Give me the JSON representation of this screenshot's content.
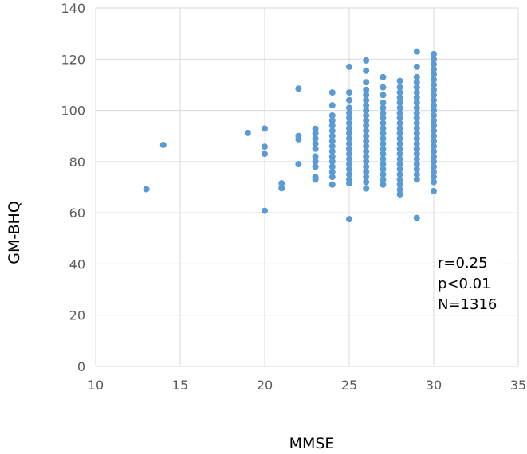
{
  "chart_data": {
    "type": "scatter",
    "title": "",
    "xlabel": "MMSE",
    "ylabel": "GM-BHQ",
    "xlim": [
      10,
      35
    ],
    "ylim": [
      0,
      140
    ],
    "x_ticks": [
      "10",
      "15",
      "20",
      "25",
      "30",
      "35"
    ],
    "y_ticks": [
      "0",
      "20",
      "40",
      "60",
      "80",
      "100",
      "120",
      "140"
    ],
    "grid": true,
    "marker_color": "#5B9BD5",
    "annotations": [
      "r=0.25",
      "p<0.01",
      "N=1316"
    ],
    "points": [
      [
        13,
        69.2
      ],
      [
        14,
        86.5
      ],
      [
        19,
        91.2
      ],
      [
        20,
        60.8
      ],
      [
        20,
        83
      ],
      [
        20,
        85.8
      ],
      [
        20,
        92.9
      ],
      [
        21,
        69.6
      ],
      [
        21,
        71.5
      ],
      [
        22,
        79
      ],
      [
        22,
        88.7
      ],
      [
        22,
        90
      ],
      [
        22,
        108.5
      ],
      [
        23,
        73
      ],
      [
        23,
        74
      ],
      [
        23,
        78
      ],
      [
        23,
        80
      ],
      [
        23,
        82
      ],
      [
        23,
        85
      ],
      [
        23,
        87
      ],
      [
        23,
        89
      ],
      [
        23,
        91
      ],
      [
        23,
        92.8
      ],
      [
        24,
        71
      ],
      [
        24,
        74
      ],
      [
        24,
        76
      ],
      [
        24,
        78
      ],
      [
        24,
        80
      ],
      [
        24,
        82
      ],
      [
        24,
        84
      ],
      [
        24,
        86
      ],
      [
        24,
        88
      ],
      [
        24,
        90
      ],
      [
        24,
        92
      ],
      [
        24,
        94
      ],
      [
        24,
        96
      ],
      [
        24,
        98
      ],
      [
        24,
        102
      ],
      [
        24,
        107
      ],
      [
        25,
        57.5
      ],
      [
        25,
        71.5
      ],
      [
        25,
        73
      ],
      [
        25,
        75
      ],
      [
        25,
        77
      ],
      [
        25,
        79
      ],
      [
        25,
        81
      ],
      [
        25,
        83
      ],
      [
        25,
        85
      ],
      [
        25,
        87
      ],
      [
        25,
        89
      ],
      [
        25,
        91
      ],
      [
        25,
        93
      ],
      [
        25,
        95
      ],
      [
        25,
        97
      ],
      [
        25,
        99
      ],
      [
        25,
        101
      ],
      [
        25,
        104
      ],
      [
        25,
        107
      ],
      [
        25,
        117
      ],
      [
        26,
        69.5
      ],
      [
        26,
        72
      ],
      [
        26,
        74
      ],
      [
        26,
        76
      ],
      [
        26,
        78
      ],
      [
        26,
        80
      ],
      [
        26,
        82
      ],
      [
        26,
        84
      ],
      [
        26,
        86
      ],
      [
        26,
        88
      ],
      [
        26,
        90
      ],
      [
        26,
        92
      ],
      [
        26,
        94
      ],
      [
        26,
        96
      ],
      [
        26,
        98
      ],
      [
        26,
        100
      ],
      [
        26,
        102
      ],
      [
        26,
        104
      ],
      [
        26,
        106
      ],
      [
        26,
        108
      ],
      [
        26,
        111
      ],
      [
        26,
        115.5
      ],
      [
        26,
        119.5
      ],
      [
        27,
        71
      ],
      [
        27,
        73
      ],
      [
        27,
        75
      ],
      [
        27,
        77
      ],
      [
        27,
        79
      ],
      [
        27,
        81
      ],
      [
        27,
        83
      ],
      [
        27,
        85
      ],
      [
        27,
        87
      ],
      [
        27,
        89
      ],
      [
        27,
        91
      ],
      [
        27,
        93
      ],
      [
        27,
        95
      ],
      [
        27,
        97
      ],
      [
        27,
        99
      ],
      [
        27,
        101
      ],
      [
        27,
        103
      ],
      [
        27,
        106
      ],
      [
        27,
        109
      ],
      [
        27,
        113
      ],
      [
        28,
        67.2
      ],
      [
        28,
        69
      ],
      [
        28,
        71
      ],
      [
        28,
        73
      ],
      [
        28,
        75
      ],
      [
        28,
        77
      ],
      [
        28,
        79
      ],
      [
        28,
        81
      ],
      [
        28,
        83
      ],
      [
        28,
        85
      ],
      [
        28,
        87
      ],
      [
        28,
        89
      ],
      [
        28,
        91
      ],
      [
        28,
        93
      ],
      [
        28,
        95
      ],
      [
        28,
        97
      ],
      [
        28,
        99
      ],
      [
        28,
        101
      ],
      [
        28,
        103
      ],
      [
        28,
        105
      ],
      [
        28,
        107
      ],
      [
        28,
        109
      ],
      [
        28,
        111.5
      ],
      [
        29,
        58
      ],
      [
        29,
        73
      ],
      [
        29,
        75
      ],
      [
        29,
        77
      ],
      [
        29,
        79
      ],
      [
        29,
        81
      ],
      [
        29,
        83
      ],
      [
        29,
        85
      ],
      [
        29,
        87
      ],
      [
        29,
        89
      ],
      [
        29,
        91
      ],
      [
        29,
        93
      ],
      [
        29,
        95
      ],
      [
        29,
        97
      ],
      [
        29,
        99
      ],
      [
        29,
        101
      ],
      [
        29,
        103
      ],
      [
        29,
        105
      ],
      [
        29,
        107
      ],
      [
        29,
        109
      ],
      [
        29,
        111
      ],
      [
        29,
        113
      ],
      [
        29,
        117
      ],
      [
        29,
        123
      ],
      [
        30,
        68.5
      ],
      [
        30,
        72
      ],
      [
        30,
        74
      ],
      [
        30,
        76
      ],
      [
        30,
        78
      ],
      [
        30,
        80
      ],
      [
        30,
        82
      ],
      [
        30,
        84
      ],
      [
        30,
        86
      ],
      [
        30,
        88
      ],
      [
        30,
        90
      ],
      [
        30,
        92
      ],
      [
        30,
        94
      ],
      [
        30,
        96
      ],
      [
        30,
        98
      ],
      [
        30,
        100
      ],
      [
        30,
        102
      ],
      [
        30,
        104
      ],
      [
        30,
        106
      ],
      [
        30,
        108
      ],
      [
        30,
        110
      ],
      [
        30,
        112
      ],
      [
        30,
        114
      ],
      [
        30,
        116
      ],
      [
        30,
        118
      ],
      [
        30,
        120
      ],
      [
        30,
        122
      ]
    ]
  }
}
